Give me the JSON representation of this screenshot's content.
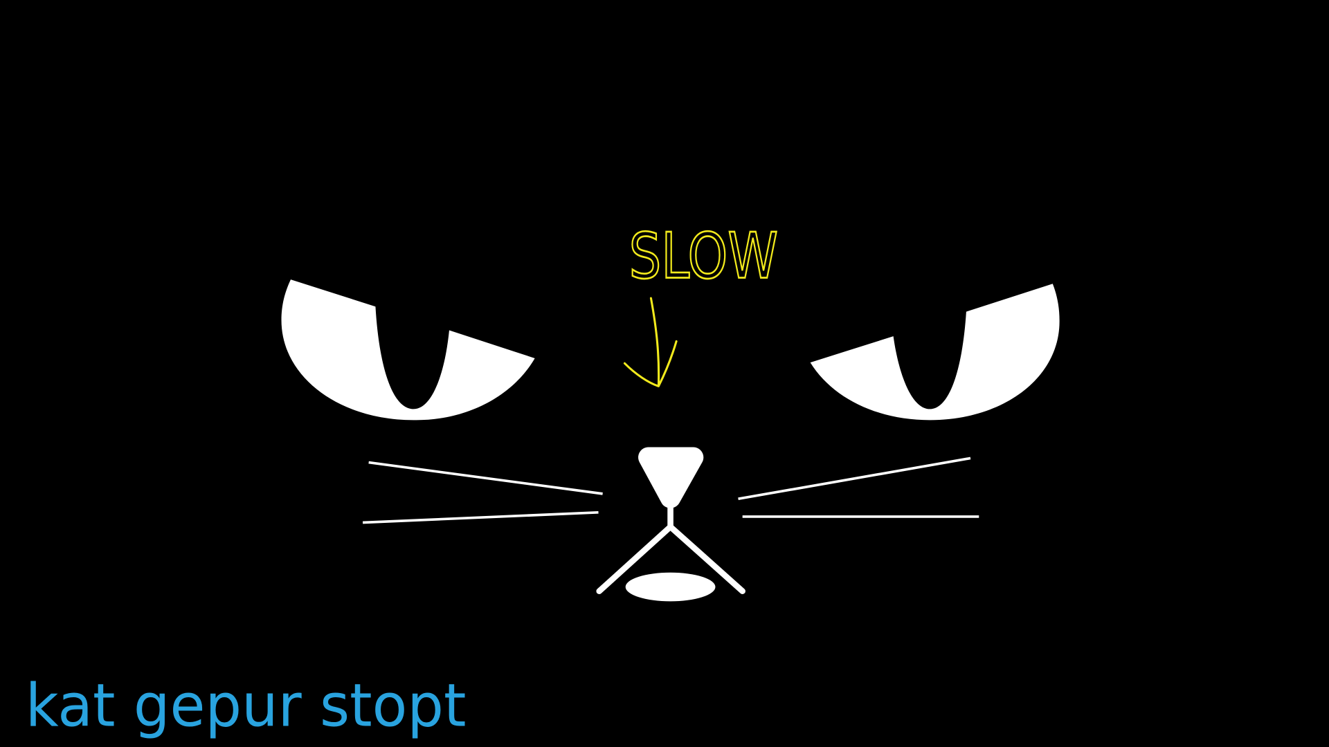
{
  "annotation": "SLOW",
  "caption": "kat gepur stopt"
}
